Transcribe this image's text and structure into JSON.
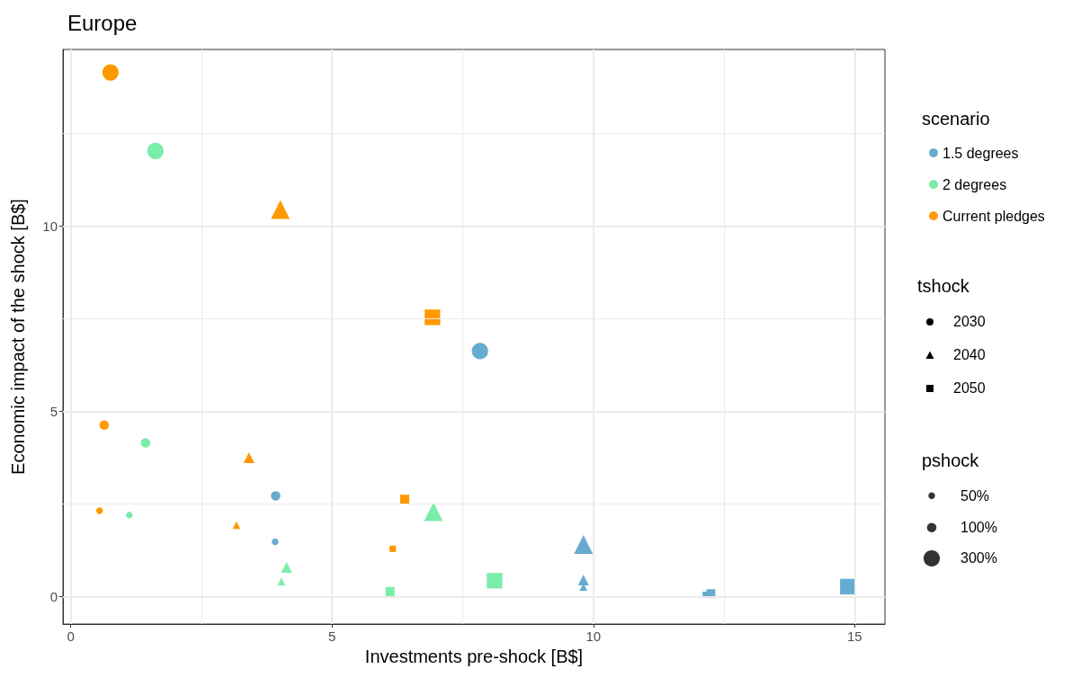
{
  "chart_data": {
    "type": "bubble",
    "title": "Europe",
    "xlabel": "Investments pre-shock [B$]",
    "ylabel": "Economic impact of the shock [B$]",
    "xlim": [
      -0.15,
      15.58
    ],
    "xticks": [
      0,
      5,
      10,
      15
    ],
    "ylim": [
      -0.74,
      14.77
    ],
    "yticks": [
      0,
      5,
      10
    ],
    "grid": true,
    "legend": "right",
    "legend_title": "scenario",
    "annotations": [
      "tshock",
      "2030",
      "2040",
      "2050",
      "pshock"
    ],
    "size_legend": [
      {
        "value": 50,
        "label": "50%"
      },
      {
        "value": 100,
        "label": "100%"
      },
      {
        "value": 300,
        "label": "300%"
      }
    ],
    "series": [
      {
        "name": "1.5 degrees",
        "color": "#67abd0",
        "marker": "circle",
        "x": [
          7.83,
          3.92,
          3.91
        ],
        "values": [
          6.63,
          2.72,
          1.48
        ],
        "sizes": [
          300,
          100,
          50
        ]
      },
      {
        "color": "#67abd0",
        "marker": "triangle",
        "x": [
          9.81,
          9.81,
          9.81
        ],
        "values": [
          1.41,
          0.45,
          0.26
        ],
        "sizes": [
          300,
          100,
          50
        ]
      },
      {
        "color": "#67abd0",
        "marker": "square",
        "x": [
          14.87,
          12.25,
          12.15
        ],
        "values": [
          0.27,
          0.08,
          0.05
        ],
        "sizes": [
          300,
          100,
          50
        ]
      },
      {
        "name": "2 degrees",
        "color": "#7aeda8",
        "marker": "circle",
        "x": [
          1.62,
          1.43,
          1.12
        ],
        "values": [
          12.03,
          4.15,
          2.2
        ],
        "sizes": [
          300,
          100,
          50
        ]
      },
      {
        "color": "#7aeda8",
        "marker": "triangle",
        "x": [
          6.94,
          4.13,
          4.03
        ],
        "values": [
          2.29,
          0.79,
          0.41
        ],
        "sizes": [
          300,
          100,
          50
        ]
      },
      {
        "color": "#7aeda8",
        "marker": "square",
        "x": [
          8.11,
          6.11,
          6.11
        ],
        "values": [
          0.43,
          0.14,
          0.07
        ],
        "sizes": [
          300,
          100,
          50
        ]
      },
      {
        "name": "Current pledges",
        "color": "#ff9900",
        "marker": "circle",
        "x": [
          0.76,
          0.64,
          0.55
        ],
        "values": [
          14.15,
          4.63,
          2.32
        ],
        "sizes": [
          300,
          100,
          50
        ]
      },
      {
        "color": "#ff9900",
        "marker": "triangle",
        "x": [
          4.01,
          3.41,
          3.17
        ],
        "values": [
          10.45,
          3.75,
          1.93
        ],
        "sizes": [
          300,
          100,
          50
        ]
      },
      {
        "color": "#ff9900",
        "marker": "square",
        "x": [
          6.92,
          6.39,
          6.16
        ],
        "values": [
          7.54,
          2.63,
          1.29
        ],
        "sizes": [
          300,
          100,
          50
        ]
      }
    ]
  }
}
